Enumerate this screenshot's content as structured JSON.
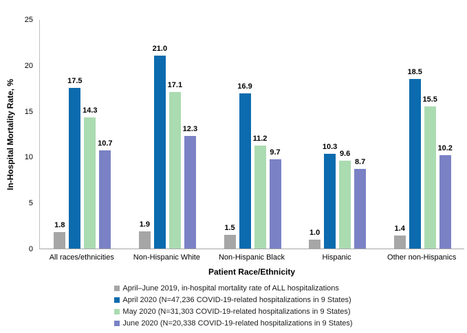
{
  "chart_data": {
    "type": "bar",
    "title": "",
    "xlabel": "Patient Race/Ethnicity",
    "ylabel": "In-Hospital Mortality Rate, %",
    "ylim": [
      0,
      25
    ],
    "yticks": [
      0,
      5,
      10,
      15,
      20,
      25
    ],
    "grid": false,
    "legend_position": "bottom",
    "categories": [
      "All races/ethnicities",
      "Non-Hispanic White",
      "Non-Hispanic Black",
      "Hispanic",
      "Other non-Hispanics"
    ],
    "series": [
      {
        "name": "April–June 2019, in-hospital mortality rate of ALL hospitalizations",
        "color": "#a6a6a6",
        "values": [
          1.8,
          1.9,
          1.5,
          1.0,
          1.4
        ]
      },
      {
        "name": "April 2020 (N=47,236 COVID-19-related hospitalizations in 9 States)",
        "color": "#0c6bae",
        "values": [
          17.5,
          21.0,
          16.9,
          10.3,
          18.5
        ]
      },
      {
        "name": "May 2020 (N=31,303 COVID-19-related hospitalizations in 9 States)",
        "color": "#abdbb1",
        "values": [
          14.3,
          17.1,
          11.2,
          9.6,
          15.5
        ]
      },
      {
        "name": "June 2020 (N=20,338 COVID-19-related hospitalizations in 9 States)",
        "color": "#7a82c5",
        "values": [
          10.7,
          12.3,
          9.7,
          8.7,
          10.2
        ]
      }
    ],
    "label_decimals": 1
  },
  "colors": {
    "axis_line": "#bfbfbf",
    "baseline": "#a6a6a6",
    "text": "#000000"
  }
}
